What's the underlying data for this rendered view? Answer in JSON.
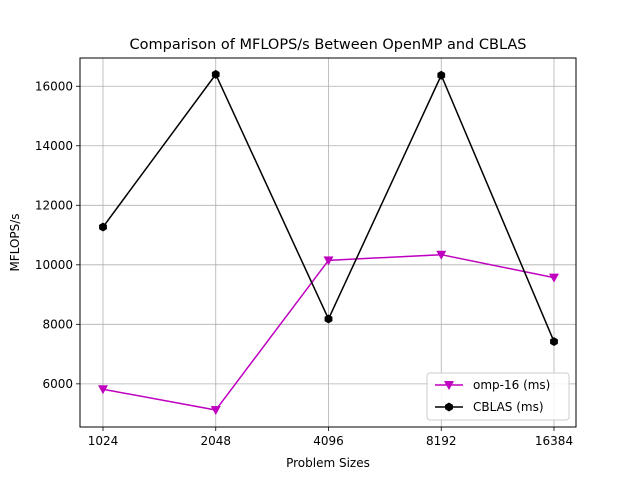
{
  "chart_data": {
    "type": "line",
    "title": "Comparison of MFLOPS/s Between OpenMP and CBLAS",
    "xlabel": "Problem Sizes",
    "ylabel": "MFLOPS/s",
    "categories": [
      "1024",
      "2048",
      "4096",
      "8192",
      "16384"
    ],
    "ylim": [
      4550,
      16950
    ],
    "yticks": [
      6000,
      8000,
      10000,
      12000,
      14000,
      16000
    ],
    "ytick_labels": [
      "6000",
      "8000",
      "10000",
      "12000",
      "14000",
      "16000"
    ],
    "grid": true,
    "legend_position": "lower-right",
    "series": [
      {
        "name": "omp-16 (ms)",
        "color": "#bf00bf",
        "marker": "triangle-down",
        "values": [
          5820,
          5120,
          10150,
          10340,
          9570
        ]
      },
      {
        "name": "CBLAS (ms)",
        "color": "#000000",
        "marker": "hexagon",
        "values": [
          11270,
          16400,
          8180,
          16370,
          7420
        ]
      }
    ]
  }
}
